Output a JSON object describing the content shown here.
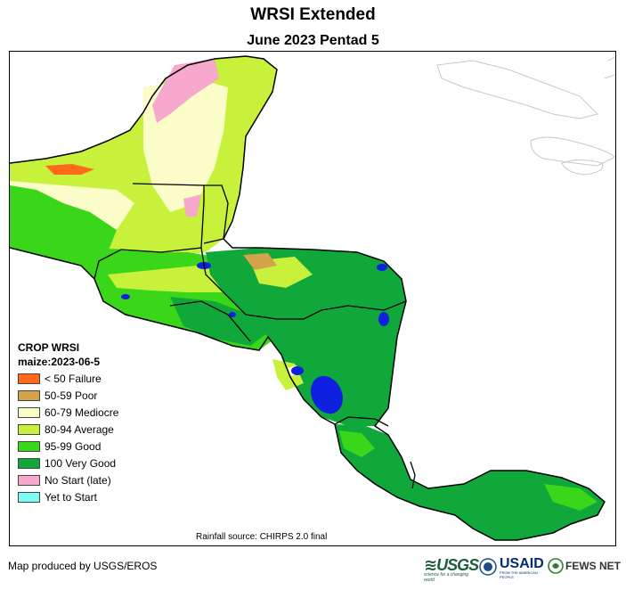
{
  "header": {
    "title": "WRSI Extended",
    "subtitle": "June 2023 Pentad 5"
  },
  "legend": {
    "title": "CROP WRSI",
    "subtitle": "maize:2023-06-5",
    "items": [
      {
        "label": "< 50  Failure",
        "color": "#ff6a1a"
      },
      {
        "label": "50-59 Poor",
        "color": "#d4a24a"
      },
      {
        "label": "60-79 Mediocre",
        "color": "#fbfdc8"
      },
      {
        "label": "80-94 Average",
        "color": "#c7f13a"
      },
      {
        "label": "95-99 Good",
        "color": "#3ad61a"
      },
      {
        "label": "100 Very Good",
        "color": "#10a83a"
      },
      {
        "label": "No Start (late)",
        "color": "#f7a8cf"
      },
      {
        "label": "Yet to Start",
        "color": "#7dfbf5"
      }
    ]
  },
  "map": {
    "rainfall_source": "Rainfall source: CHIRPS 2.0 final",
    "water_color": "#1020e0",
    "border_color": "#000000",
    "coast_color": "#c8c8c8"
  },
  "footer": {
    "produced_by": "Map produced by USGS/EROS",
    "usgs": "USGS",
    "usgs_tag": "science for a changing world",
    "usaid": "USAID",
    "usaid_tag": "FROM THE AMERICAN PEOPLE",
    "fews": "FEWS NET"
  }
}
